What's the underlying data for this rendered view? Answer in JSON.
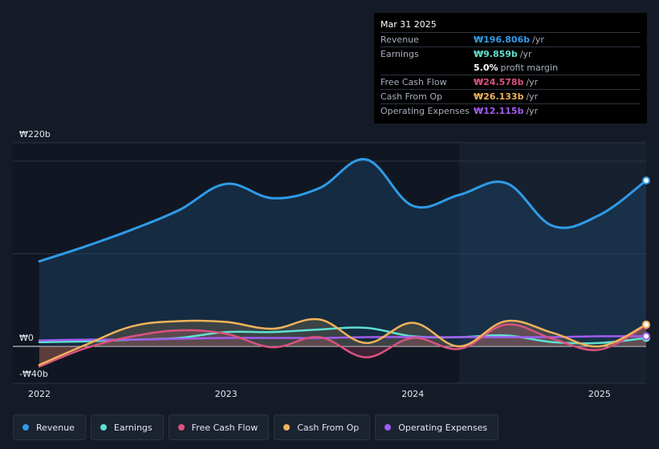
{
  "tooltip": {
    "date": "Mar 31 2025",
    "rows": [
      {
        "label": "Revenue",
        "value": "₩196.806b",
        "unit": "/yr",
        "color": "#2f9be8"
      },
      {
        "label": "Earnings",
        "value": "₩9.859b",
        "unit": "/yr",
        "color": "#5fe0d0"
      },
      {
        "label": "",
        "value": "5.0%",
        "unit": "profit margin",
        "color": "#ffffff"
      },
      {
        "label": "Free Cash Flow",
        "value": "₩24.578b",
        "unit": "/yr",
        "color": "#d9527f"
      },
      {
        "label": "Cash From Op",
        "value": "₩26.133b",
        "unit": "/yr",
        "color": "#f0b35a"
      },
      {
        "label": "Operating Expenses",
        "value": "₩12.115b",
        "unit": "/yr",
        "color": "#a15cf0"
      }
    ]
  },
  "legend": [
    {
      "label": "Revenue",
      "color": "#2f9be8"
    },
    {
      "label": "Earnings",
      "color": "#5fe0d0"
    },
    {
      "label": "Free Cash Flow",
      "color": "#d9527f"
    },
    {
      "label": "Cash From Op",
      "color": "#f0b35a"
    },
    {
      "label": "Operating Expenses",
      "color": "#a15cf0"
    }
  ],
  "chart_data": {
    "type": "area",
    "unit": "KRW billions",
    "ylim": [
      -40,
      220
    ],
    "ytick_labels": [
      "₩220b",
      "₩0",
      "-₩40b"
    ],
    "x_tick_labels": [
      "2022",
      "2023",
      "2024",
      "2025"
    ],
    "xlim": [
      2022.0,
      2025.25
    ],
    "past_data_start": 2024.25,
    "series": [
      {
        "name": "Revenue",
        "color": "#2f9be8",
        "fill": true,
        "x": [
          2022.0,
          2022.25,
          2022.5,
          2022.75,
          2023.0,
          2023.25,
          2023.5,
          2023.75,
          2024.0,
          2024.25,
          2024.5,
          2024.75,
          2025.0,
          2025.25
        ],
        "values": [
          101,
          119,
          139,
          162,
          193,
          176,
          188,
          222,
          167,
          180,
          194,
          143,
          156,
          197
        ]
      },
      {
        "name": "Earnings",
        "color": "#5fe0d0",
        "fill": false,
        "x": [
          2022.0,
          2022.25,
          2022.5,
          2022.75,
          2023.0,
          2023.25,
          2023.5,
          2023.75,
          2024.0,
          2024.25,
          2024.5,
          2024.75,
          2025.0,
          2025.25
        ],
        "values": [
          5,
          6,
          8,
          10,
          17,
          17,
          20,
          22,
          12,
          11,
          13,
          5,
          4,
          10
        ]
      },
      {
        "name": "Free Cash Flow",
        "color": "#d9527f",
        "fill": true,
        "x": [
          2022.0,
          2022.25,
          2022.5,
          2022.75,
          2023.0,
          2023.25,
          2023.5,
          2023.75,
          2024.0,
          2024.25,
          2024.5,
          2024.75,
          2025.0,
          2025.25
        ],
        "values": [
          -24,
          -2,
          12,
          19,
          15,
          -1,
          11,
          -13,
          10,
          -3,
          26,
          9,
          -4,
          25
        ]
      },
      {
        "name": "Cash From Op",
        "color": "#f0b35a",
        "fill": true,
        "x": [
          2022.0,
          2022.25,
          2022.5,
          2022.75,
          2023.0,
          2023.25,
          2023.5,
          2023.75,
          2024.0,
          2024.25,
          2024.5,
          2024.75,
          2025.0,
          2025.25
        ],
        "values": [
          -22,
          2,
          24,
          30,
          29,
          21,
          32,
          4,
          28,
          0,
          30,
          16,
          0,
          26
        ]
      },
      {
        "name": "Operating Expenses",
        "color": "#a15cf0",
        "fill": false,
        "x": [
          2022.0,
          2022.25,
          2022.5,
          2022.75,
          2023.0,
          2023.25,
          2023.5,
          2023.75,
          2024.0,
          2024.25,
          2024.5,
          2024.75,
          2025.0,
          2025.25
        ],
        "values": [
          7,
          8,
          8,
          9,
          10,
          10,
          10,
          11,
          11,
          11,
          11,
          11,
          12,
          12
        ]
      }
    ]
  }
}
